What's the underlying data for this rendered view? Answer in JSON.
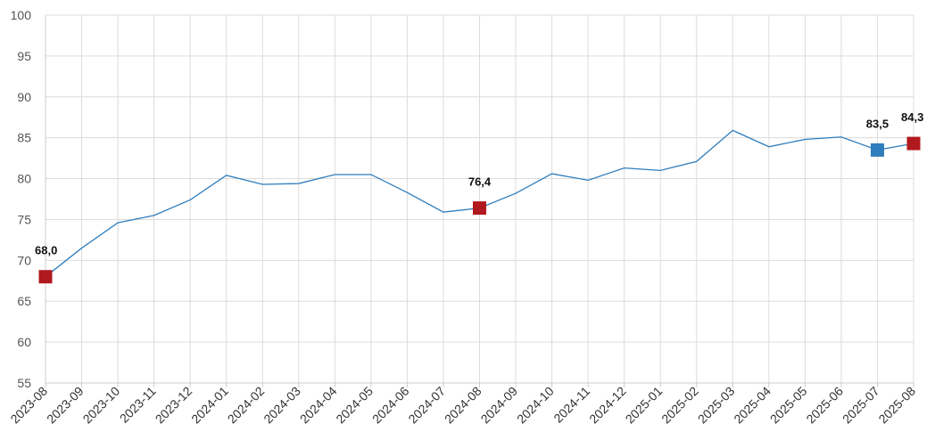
{
  "chart_data": {
    "type": "line",
    "title": "",
    "xlabel": "",
    "ylabel": "",
    "ylim": [
      55,
      100
    ],
    "yticks": [
      55,
      60,
      65,
      70,
      75,
      80,
      85,
      90,
      95,
      100
    ],
    "grid": true,
    "categories": [
      "2023-08",
      "2023-09",
      "2023-10",
      "2023-11",
      "2023-12",
      "2024-01",
      "2024-02",
      "2024-03",
      "2024-04",
      "2024-05",
      "2024-06",
      "2024-07",
      "2024-08",
      "2024-09",
      "2024-10",
      "2024-11",
      "2024-12",
      "2025-01",
      "2025-02",
      "2025-03",
      "2025-04",
      "2025-05",
      "2025-06",
      "2025-07",
      "2025-08"
    ],
    "series": [
      {
        "color": "#2e7dbd",
        "values": [
          68.0,
          71.5,
          74.6,
          75.5,
          77.4,
          80.4,
          79.3,
          79.4,
          80.5,
          80.5,
          78.3,
          75.9,
          76.4,
          78.2,
          80.6,
          79.8,
          81.3,
          81.0,
          82.1,
          85.9,
          83.9,
          84.8,
          85.1,
          83.5,
          84.3
        ]
      }
    ],
    "highlights": [
      {
        "category": "2023-08",
        "value": 68.0,
        "label": "68,0",
        "color": "#b0191e"
      },
      {
        "category": "2024-08",
        "value": 76.4,
        "label": "76,4",
        "color": "#b0191e"
      },
      {
        "category": "2025-07",
        "value": 83.5,
        "label": "83,5",
        "color": "#2e7dbd"
      },
      {
        "category": "2025-08",
        "value": 84.3,
        "label": "84,3",
        "color": "#b0191e"
      }
    ]
  }
}
